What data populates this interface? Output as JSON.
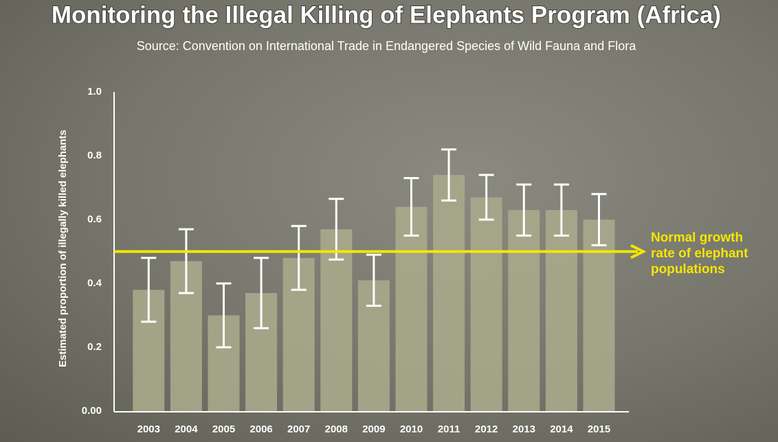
{
  "chart_data": {
    "type": "bar",
    "title": "Monitoring the Illegal Killing of Elephants Program (Africa)",
    "subtitle": "Source: Convention on International Trade in Endangered Species of Wild Fauna and Flora",
    "y_label": "Estimated proportion of illegally killed elephants",
    "categories": [
      "2003",
      "2004",
      "2005",
      "2006",
      "2007",
      "2008",
      "2009",
      "2010",
      "2011",
      "2012",
      "2013",
      "2014",
      "2015"
    ],
    "values": [
      0.38,
      0.47,
      0.3,
      0.37,
      0.48,
      0.57,
      0.41,
      0.64,
      0.74,
      0.67,
      0.63,
      0.63,
      0.6
    ],
    "errors": [
      0.1,
      0.1,
      0.1,
      0.11,
      0.1,
      0.095,
      0.08,
      0.09,
      0.08,
      0.07,
      0.08,
      0.08,
      0.08
    ],
    "color": "#a9a88c",
    "error_color": "#ffffff",
    "ylim": [
      0,
      1
    ],
    "yticks": [
      {
        "value": 0,
        "label": "0.00"
      },
      0.2,
      0.4,
      0.6,
      0.8,
      {
        "value": 1,
        "label": "1.0"
      }
    ],
    "grid": false,
    "reference_line": {
      "value": 0.5,
      "color": "#f5e600",
      "label_lines": [
        "Normal growth",
        "rate of elephant",
        "populations"
      ]
    }
  }
}
